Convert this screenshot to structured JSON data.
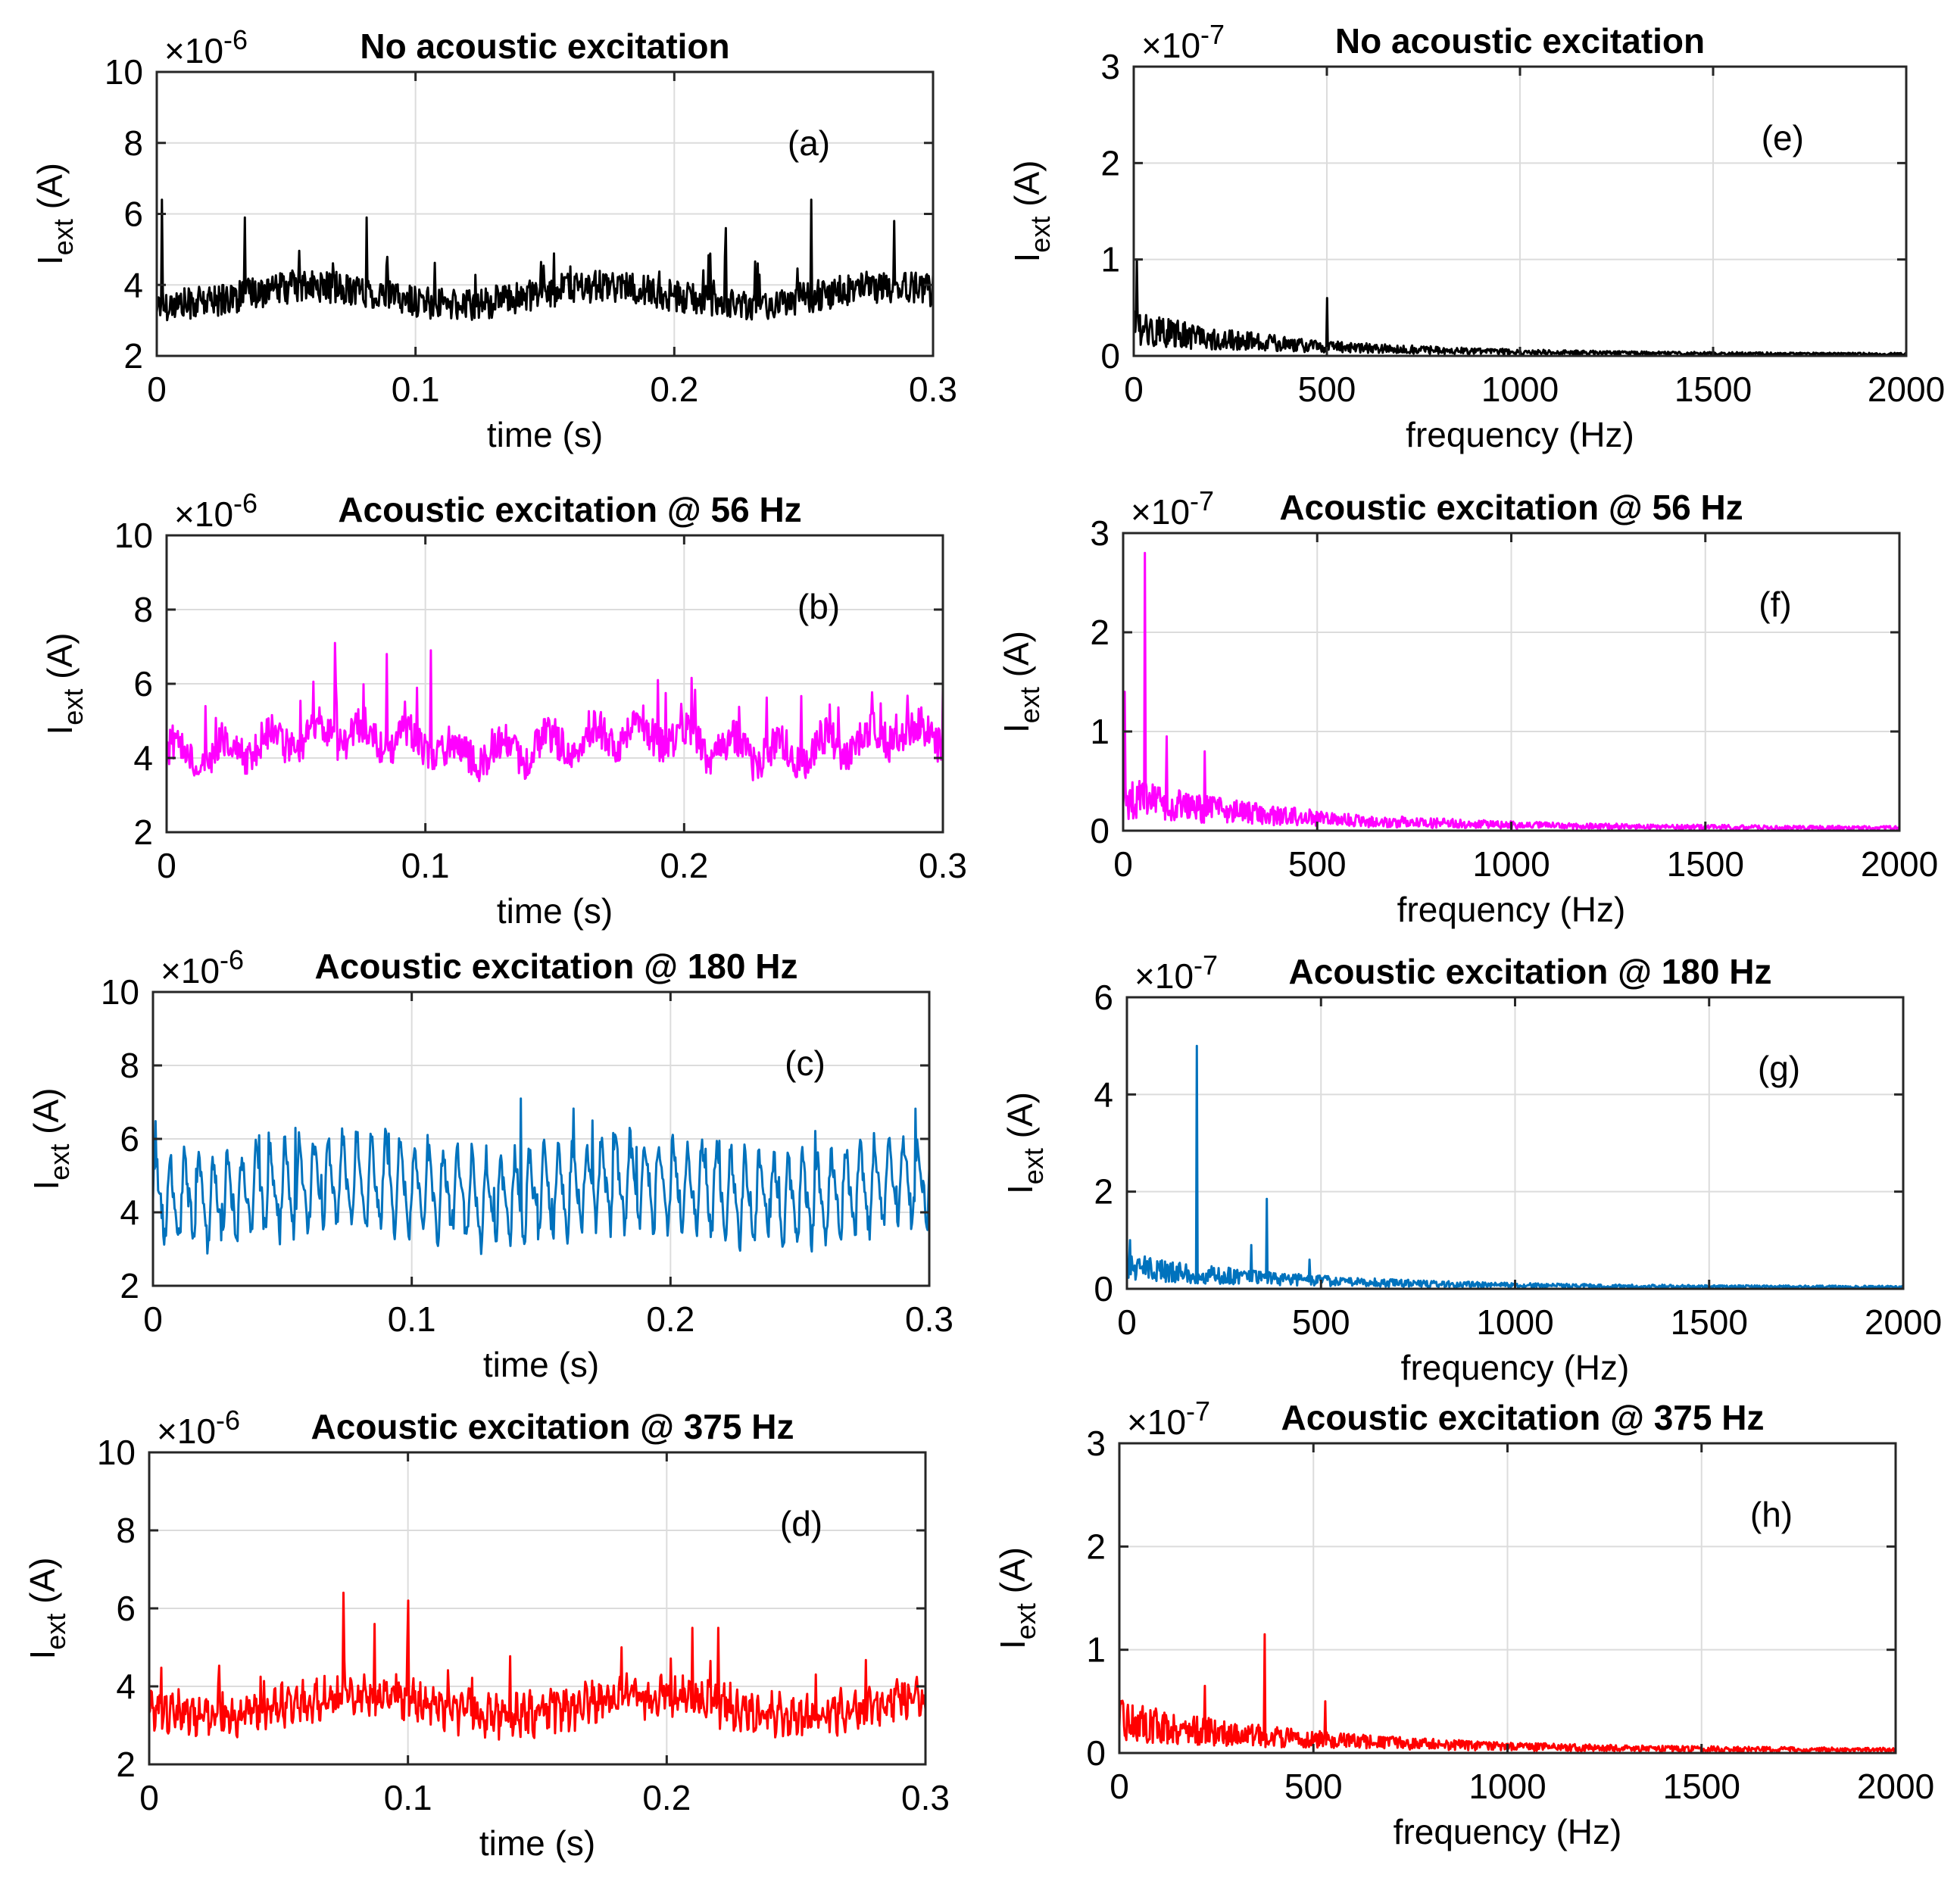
{
  "chart_data": [
    {
      "id": "a",
      "type": "line",
      "title": "No acoustic excitation",
      "panel_label": "(a)",
      "xlabel": "time (s)",
      "ylabel_main": "I",
      "ylabel_sub": "ext",
      "ylabel_unit": " (A)",
      "exponent_prefix": "×10",
      "exponent": "-6",
      "xlim": [
        0,
        0.3
      ],
      "ylim": [
        2,
        10
      ],
      "xticks": [
        0,
        0.1,
        0.2,
        0.3
      ],
      "xtick_labels": [
        "0",
        "0.1",
        "0.2",
        "0.3"
      ],
      "yticks": [
        2,
        4,
        6,
        8,
        10
      ],
      "ytick_labels": [
        "2",
        "4",
        "6",
        "8",
        "10"
      ],
      "grid": true,
      "color": "#000000",
      "series": {
        "kind": "time",
        "baseline": 3.7,
        "noise": 0.45,
        "spikes": [
          [
            0.002,
            6.4
          ],
          [
            0.034,
            5.9
          ],
          [
            0.081,
            5.9
          ],
          [
            0.22,
            5.6
          ],
          [
            0.253,
            6.4
          ],
          [
            0.285,
            5.8
          ]
        ],
        "tones": []
      }
    },
    {
      "id": "b",
      "type": "line",
      "title": "Acoustic excitation @ 56 Hz",
      "panel_label": "(b)",
      "xlabel": "time (s)",
      "ylabel_main": "I",
      "ylabel_sub": "ext",
      "ylabel_unit": " (A)",
      "exponent_prefix": "×10",
      "exponent": "-6",
      "xlim": [
        0,
        0.3
      ],
      "ylim": [
        2,
        10
      ],
      "xticks": [
        0,
        0.1,
        0.2,
        0.3
      ],
      "xtick_labels": [
        "0",
        "0.1",
        "0.2",
        "0.3"
      ],
      "yticks": [
        2,
        4,
        6,
        8,
        10
      ],
      "ytick_labels": [
        "2",
        "4",
        "6",
        "8",
        "10"
      ],
      "grid": true,
      "color": "#ff00ff",
      "series": {
        "kind": "time",
        "baseline": 4.4,
        "noise": 0.5,
        "spikes": [
          [
            0.065,
            7.1
          ],
          [
            0.085,
            6.8
          ],
          [
            0.102,
            6.9
          ],
          [
            0.19,
            6.1
          ],
          [
            0.3,
            5.9
          ]
        ],
        "tones": [
          [
            56,
            0.3
          ]
        ]
      }
    },
    {
      "id": "c",
      "type": "line",
      "title": "Acoustic excitation @ 180 Hz",
      "panel_label": "(c)",
      "xlabel": "time (s)",
      "ylabel_main": "I",
      "ylabel_sub": "ext",
      "ylabel_unit": " (A)",
      "exponent_prefix": "×10",
      "exponent": "-6",
      "xlim": [
        0,
        0.3
      ],
      "ylim": [
        2,
        10
      ],
      "xticks": [
        0,
        0.1,
        0.2,
        0.3
      ],
      "xtick_labels": [
        "0",
        "0.1",
        "0.2",
        "0.3"
      ],
      "yticks": [
        2,
        4,
        6,
        8,
        10
      ],
      "ytick_labels": [
        "2",
        "4",
        "6",
        "8",
        "10"
      ],
      "grid": true,
      "color": "#0072bd",
      "series": {
        "kind": "time",
        "baseline": 4.6,
        "noise": 0.35,
        "spikes": [
          [
            0.142,
            7.1
          ],
          [
            0.17,
            6.5
          ],
          [
            0.055,
            6.3
          ]
        ],
        "tones": [
          [
            180,
            1.0
          ],
          [
            360,
            0.35
          ]
        ]
      }
    },
    {
      "id": "d",
      "type": "line",
      "title": "Acoustic excitation @ 375 Hz",
      "panel_label": "(d)",
      "xlabel": "time (s)",
      "ylabel_main": "I",
      "ylabel_sub": "ext",
      "ylabel_unit": " (A)",
      "exponent_prefix": "×10",
      "exponent": "-6",
      "xlim": [
        0,
        0.3
      ],
      "ylim": [
        2,
        10
      ],
      "xticks": [
        0,
        0.1,
        0.2,
        0.3
      ],
      "xtick_labels": [
        "0",
        "0.1",
        "0.2",
        "0.3"
      ],
      "yticks": [
        2,
        4,
        6,
        8,
        10
      ],
      "ytick_labels": [
        "2",
        "4",
        "6",
        "8",
        "10"
      ],
      "grid": true,
      "color": "#ff0000",
      "series": {
        "kind": "time",
        "baseline": 3.5,
        "noise": 0.4,
        "spikes": [
          [
            0.075,
            6.4
          ],
          [
            0.1,
            6.2
          ],
          [
            0.087,
            5.6
          ],
          [
            0.21,
            5.5
          ],
          [
            0.22,
            5.5
          ]
        ],
        "tones": [
          [
            375,
            0.25
          ]
        ]
      }
    },
    {
      "id": "e",
      "type": "line",
      "title": "No acoustic excitation",
      "panel_label": "(e)",
      "xlabel": "frequency (Hz)",
      "ylabel_main": "I",
      "ylabel_sub": "ext",
      "ylabel_unit": " (A)",
      "exponent_prefix": "×10",
      "exponent": "-7",
      "xlim": [
        0,
        2000
      ],
      "ylim": [
        0,
        3
      ],
      "xticks": [
        0,
        500,
        1000,
        1500,
        2000
      ],
      "xtick_labels": [
        "0",
        "500",
        "1000",
        "1500",
        "2000"
      ],
      "yticks": [
        0,
        1,
        2,
        3
      ],
      "ytick_labels": [
        "0",
        "1",
        "2",
        "3"
      ],
      "grid": true,
      "color": "#000000",
      "series": {
        "kind": "freq",
        "amp": 0.32,
        "decay": 420,
        "floor": 0.02,
        "peaks": [
          [
            8,
            1.0
          ],
          [
            500,
            0.6
          ]
        ]
      }
    },
    {
      "id": "f",
      "type": "line",
      "title": "Acoustic excitation @ 56 Hz",
      "panel_label": "(f)",
      "xlabel": "frequency (Hz)",
      "ylabel_main": "I",
      "ylabel_sub": "ext",
      "ylabel_unit": " (A)",
      "exponent_prefix": "×10",
      "exponent": "-7",
      "xlim": [
        0,
        2000
      ],
      "ylim": [
        0,
        3
      ],
      "xticks": [
        0,
        500,
        1000,
        1500,
        2000
      ],
      "xtick_labels": [
        "0",
        "500",
        "1000",
        "1500",
        "2000"
      ],
      "yticks": [
        0,
        1,
        2,
        3
      ],
      "ytick_labels": [
        "0",
        "1",
        "2",
        "3"
      ],
      "grid": true,
      "color": "#ff00ff",
      "series": {
        "kind": "freq",
        "amp": 0.36,
        "decay": 450,
        "floor": 0.03,
        "peaks": [
          [
            5,
            1.4
          ],
          [
            56,
            2.8
          ],
          [
            112,
            0.95
          ],
          [
            210,
            0.8
          ]
        ]
      }
    },
    {
      "id": "g",
      "type": "line",
      "title": "Acoustic excitation @ 180 Hz",
      "panel_label": "(g)",
      "xlabel": "frequency (Hz)",
      "ylabel_main": "I",
      "ylabel_sub": "ext",
      "ylabel_unit": " (A)",
      "exponent_prefix": "×10",
      "exponent": "-7",
      "xlim": [
        0,
        2000
      ],
      "ylim": [
        0,
        6
      ],
      "xticks": [
        0,
        500,
        1000,
        1500,
        2000
      ],
      "xtick_labels": [
        "0",
        "500",
        "1000",
        "1500",
        "2000"
      ],
      "yticks": [
        0,
        2,
        4,
        6
      ],
      "ytick_labels": [
        "0",
        "2",
        "4",
        "6"
      ],
      "grid": true,
      "color": "#0072bd",
      "series": {
        "kind": "freq",
        "amp": 0.5,
        "decay": 430,
        "floor": 0.04,
        "peaks": [
          [
            8,
            1.0
          ],
          [
            180,
            5.0
          ],
          [
            360,
            1.85
          ],
          [
            320,
            0.9
          ],
          [
            470,
            0.6
          ]
        ]
      }
    },
    {
      "id": "h",
      "type": "line",
      "title": "Acoustic excitation @ 375 Hz",
      "panel_label": "(h)",
      "xlabel": "frequency (Hz)",
      "ylabel_main": "I",
      "ylabel_sub": "ext",
      "ylabel_unit": " (A)",
      "exponent_prefix": "×10",
      "exponent": "-7",
      "xlim": [
        0,
        2000
      ],
      "ylim": [
        0,
        3
      ],
      "xticks": [
        0,
        500,
        1000,
        1500,
        2000
      ],
      "xtick_labels": [
        "0",
        "500",
        "1000",
        "1500",
        "2000"
      ],
      "yticks": [
        0,
        1,
        2,
        3
      ],
      "ytick_labels": [
        "0",
        "1",
        "2",
        "3"
      ],
      "grid": true,
      "color": "#ff0000",
      "series": {
        "kind": "freq",
        "amp": 0.34,
        "decay": 500,
        "floor": 0.03,
        "peaks": [
          [
            375,
            1.15
          ],
          [
            530,
            0.5
          ],
          [
            220,
            0.65
          ]
        ]
      }
    }
  ]
}
